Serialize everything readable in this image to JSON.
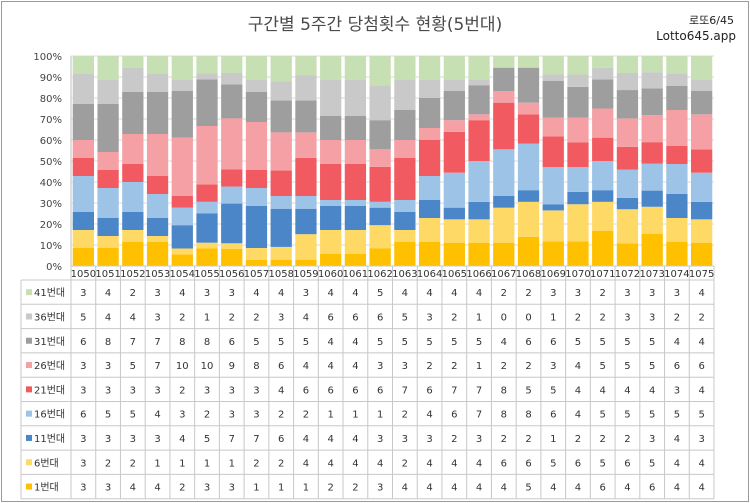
{
  "chart_data": {
    "type": "stacked-bar-100-with-table",
    "title": "구간별 5주간 당첨횟수 현황(5번대)",
    "brand_line1": "로또6/45",
    "brand_line2": "Lotto645.app",
    "ylim": [
      0,
      100
    ],
    "y_ticks": [
      "0%",
      "10%",
      "20%",
      "30%",
      "40%",
      "50%",
      "60%",
      "70%",
      "80%",
      "90%",
      "100%"
    ],
    "categories": [
      "1050",
      "1051",
      "1052",
      "1053",
      "1054",
      "1055",
      "1056",
      "1057",
      "1058",
      "1059",
      "1060",
      "1061",
      "1062",
      "1063",
      "1064",
      "1065",
      "1066",
      "1067",
      "1068",
      "1069",
      "1070",
      "1071",
      "1072",
      "1073",
      "1074",
      "1075"
    ],
    "series": [
      {
        "name": "1번대",
        "color": "#FFC000",
        "values": [
          3,
          3,
          4,
          4,
          2,
          3,
          3,
          1,
          1,
          1,
          2,
          2,
          3,
          4,
          4,
          4,
          4,
          4,
          5,
          4,
          4,
          6,
          4,
          6,
          4,
          4
        ]
      },
      {
        "name": "6번대",
        "color": "#FFD966",
        "values": [
          3,
          2,
          2,
          1,
          1,
          1,
          1,
          2,
          2,
          4,
          4,
          4,
          4,
          2,
          4,
          4,
          4,
          6,
          6,
          5,
          6,
          5,
          6,
          5,
          4,
          4
        ]
      },
      {
        "name": "11번대",
        "color": "#4A86C8",
        "values": [
          3,
          3,
          3,
          3,
          4,
          5,
          7,
          7,
          6,
          4,
          4,
          4,
          3,
          3,
          3,
          2,
          3,
          2,
          2,
          1,
          2,
          2,
          2,
          3,
          4,
          3
        ]
      },
      {
        "name": "16번대",
        "color": "#9DC3E6",
        "values": [
          6,
          5,
          5,
          4,
          3,
          2,
          3,
          3,
          2,
          2,
          1,
          1,
          1,
          2,
          4,
          6,
          7,
          8,
          8,
          6,
          4,
          5,
          5,
          5,
          5,
          5
        ]
      },
      {
        "name": "21번대",
        "color": "#F15A60",
        "values": [
          3,
          3,
          3,
          3,
          2,
          3,
          3,
          3,
          4,
          6,
          6,
          6,
          6,
          7,
          6,
          7,
          7,
          8,
          5,
          5,
          4,
          4,
          4,
          4,
          3,
          4
        ]
      },
      {
        "name": "26번대",
        "color": "#F4A0A5",
        "values": [
          3,
          3,
          5,
          7,
          10,
          10,
          9,
          8,
          6,
          4,
          4,
          4,
          3,
          3,
          2,
          2,
          1,
          2,
          2,
          3,
          4,
          5,
          5,
          5,
          6,
          6
        ]
      },
      {
        "name": "31번대",
        "color": "#9E9E9E",
        "values": [
          6,
          8,
          7,
          7,
          8,
          8,
          6,
          5,
          5,
          5,
          4,
          4,
          5,
          5,
          5,
          5,
          5,
          4,
          6,
          6,
          5,
          5,
          5,
          5,
          4,
          4
        ]
      },
      {
        "name": "36번대",
        "color": "#C9C9C9",
        "values": [
          5,
          4,
          4,
          3,
          2,
          1,
          2,
          2,
          3,
          4,
          6,
          6,
          6,
          5,
          3,
          2,
          1,
          0,
          0,
          1,
          2,
          2,
          3,
          3,
          2,
          2
        ]
      },
      {
        "name": "41번대",
        "color": "#C6E0B4",
        "values": [
          3,
          4,
          2,
          3,
          4,
          3,
          3,
          4,
          4,
          3,
          4,
          4,
          5,
          4,
          4,
          4,
          4,
          2,
          2,
          3,
          3,
          2,
          3,
          3,
          3,
          4
        ]
      }
    ]
  }
}
